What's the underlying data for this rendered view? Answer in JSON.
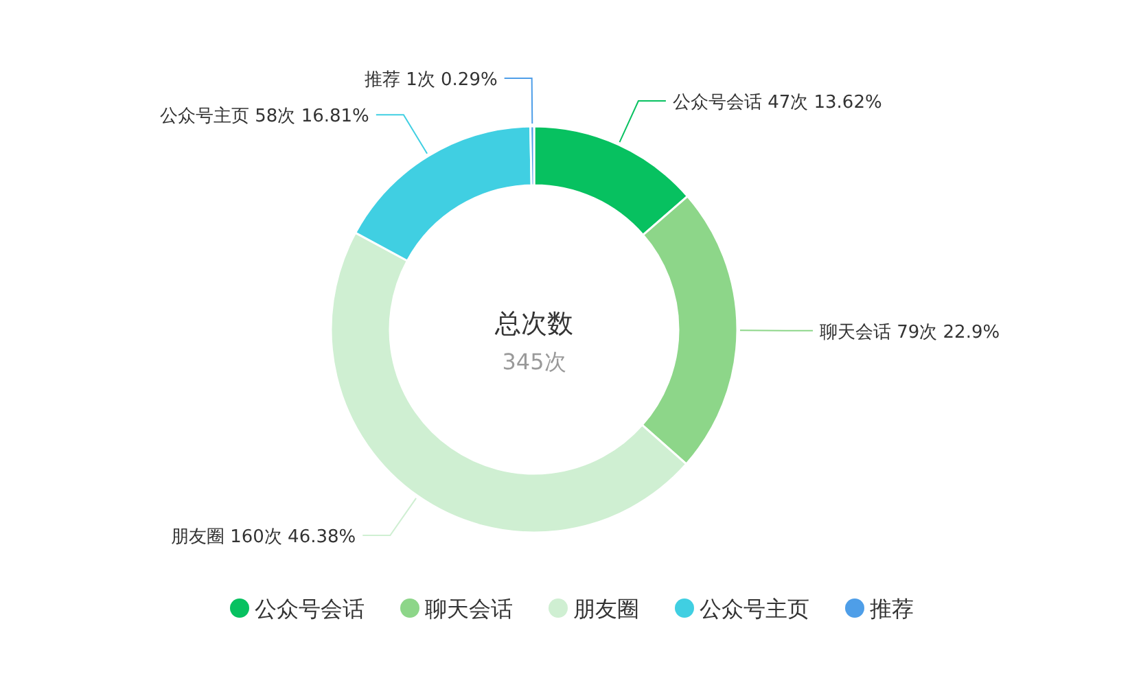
{
  "chart_data": {
    "type": "donut",
    "title": "总次数",
    "subtitle": "345次",
    "categories": [
      "公众号会话",
      "聊天会话",
      "朋友圈",
      "公众号主页",
      "推荐"
    ],
    "values": [
      47,
      79,
      160,
      58,
      1
    ],
    "value_labels": [
      "47次 13.62%",
      "79次 22.9%",
      "160次 46.38%",
      "58次 16.81%",
      "1次 0.29%"
    ],
    "colors": [
      "#07c160",
      "#8dd689",
      "#cfefd2",
      "#40cfe2",
      "#4e9ee8"
    ],
    "legend": "bottom"
  }
}
